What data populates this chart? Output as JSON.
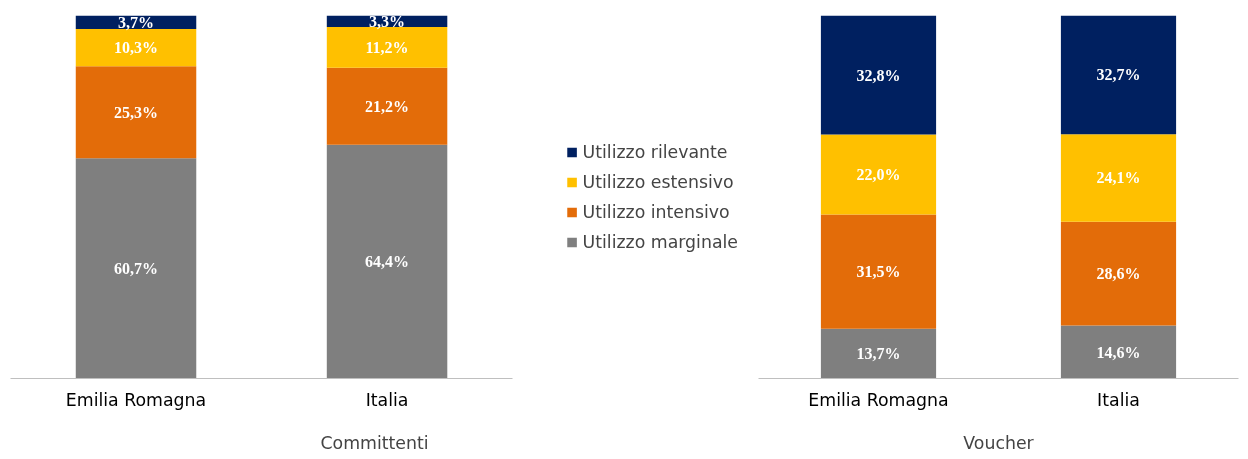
{
  "chart_data": [
    {
      "type": "bar",
      "stacked": true,
      "xlabel": "Committenti",
      "categories": [
        "Emilia Romagna",
        "Italia"
      ],
      "ylim": [
        0,
        100
      ],
      "tick_labels": "x",
      "grid": false,
      "legend": "right",
      "series": [
        {
          "name": "Utilizzo marginale",
          "color": "#7f7f7f",
          "values": [
            60.7,
            64.4
          ],
          "value_labels": [
            "60,7%",
            "64,4%"
          ]
        },
        {
          "name": "Utilizzo intensivo",
          "color": "#e36c09",
          "values": [
            25.3,
            21.2
          ],
          "value_labels": [
            "25,3%",
            "21,2%"
          ]
        },
        {
          "name": "Utilizzo estensivo",
          "color": "#ffc000",
          "values": [
            10.3,
            11.2
          ],
          "value_labels": [
            "10,3%",
            "11,2%"
          ]
        },
        {
          "name": "Utilizzo rilevante",
          "color": "#002060",
          "values": [
            3.7,
            3.3
          ],
          "value_labels": [
            "3,7%",
            "3,3%"
          ]
        }
      ]
    },
    {
      "type": "bar",
      "stacked": true,
      "xlabel": "Voucher",
      "categories": [
        "Emilia Romagna",
        "Italia"
      ],
      "ylim": [
        0,
        100
      ],
      "tick_labels": "x",
      "grid": false,
      "series": [
        {
          "color": "#7f7f7f",
          "values": [
            13.7,
            14.6
          ],
          "value_labels": [
            "13,7%",
            "14,6%"
          ]
        },
        {
          "color": "#e36c09",
          "values": [
            31.5,
            28.6
          ],
          "value_labels": [
            "31,5%",
            "28,6%"
          ]
        },
        {
          "color": "#ffc000",
          "values": [
            22.0,
            24.1
          ],
          "value_labels": [
            "22,0%",
            "24,1%"
          ]
        },
        {
          "color": "#002060",
          "values": [
            32.8,
            32.7
          ],
          "value_labels": [
            "32,8%",
            "32,7%"
          ]
        }
      ]
    }
  ]
}
